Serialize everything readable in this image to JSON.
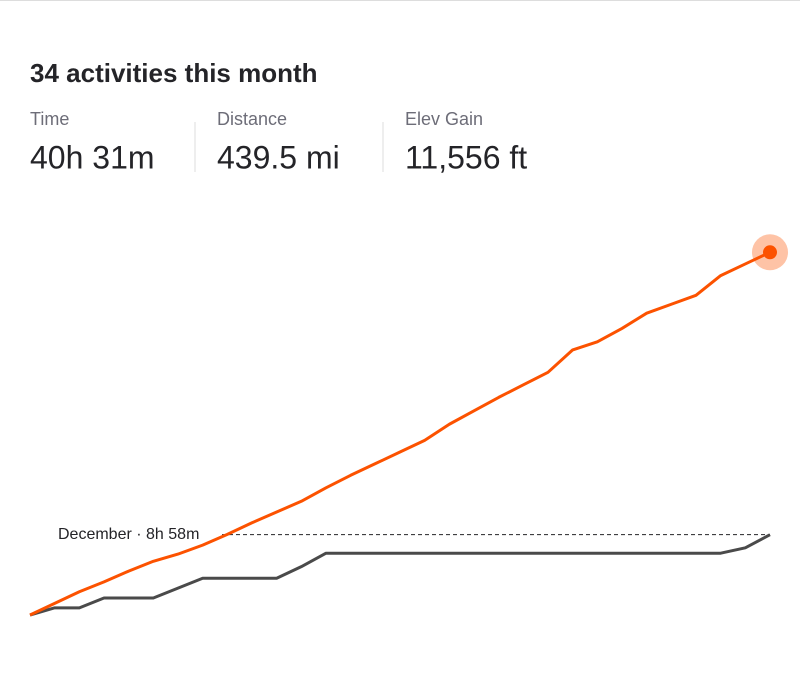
{
  "header": {
    "title": "34 activities this month"
  },
  "stats": [
    {
      "label": "Time",
      "value": "40h 31m"
    },
    {
      "label": "Distance",
      "value": "439.5 mi"
    },
    {
      "label": "Elev Gain",
      "value": "11,556 ft"
    }
  ],
  "chart_data": {
    "type": "line",
    "categories": [
      null,
      null,
      null,
      null,
      null,
      null,
      null,
      null,
      null,
      null,
      null,
      null,
      null,
      null,
      null,
      null,
      null,
      null,
      null,
      null,
      null,
      null,
      null,
      null,
      null,
      null,
      null,
      null,
      null,
      null,
      null
    ],
    "series": [
      {
        "color": "#fc5200",
        "values": [
          0,
          1.3,
          2.6,
          3.7,
          4.9,
          6.0,
          6.8,
          7.8,
          9.0,
          10.3,
          11.5,
          12.7,
          14.2,
          15.6,
          16.9,
          18.2,
          19.5,
          21.3,
          22.8,
          24.3,
          25.7,
          27.1,
          29.6,
          30.5,
          32.0,
          33.7,
          34.7,
          35.7,
          37.9,
          39.2,
          40.5
        ]
      },
      {
        "color": "#4a4a4a",
        "values": [
          0,
          0.8,
          0.8,
          1.9,
          1.9,
          1.9,
          3.0,
          4.1,
          4.1,
          4.1,
          4.1,
          5.4,
          6.9,
          6.9,
          6.9,
          6.9,
          6.9,
          6.9,
          6.9,
          6.9,
          6.9,
          6.9,
          6.9,
          6.9,
          6.9,
          6.9,
          6.9,
          6.9,
          6.9,
          7.5,
          8.97
        ]
      }
    ],
    "annotation": {
      "text": "December · 8h 58m",
      "value": 8.97
    },
    "ylim": [
      0,
      45
    ]
  }
}
